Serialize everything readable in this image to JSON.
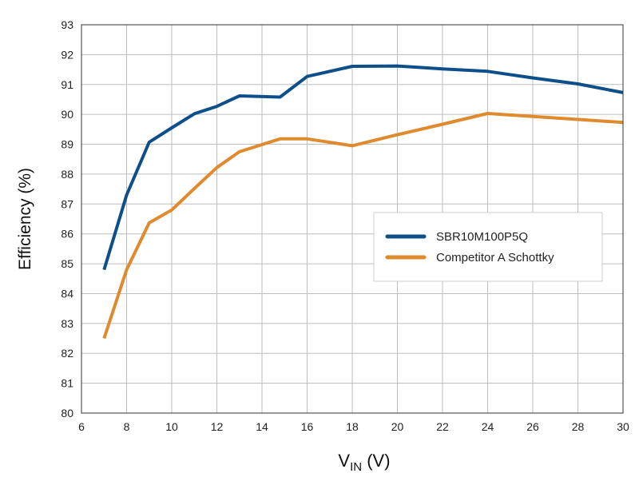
{
  "chart_data": {
    "type": "line",
    "title": "",
    "xlabel": {
      "main": "V",
      "sub": "IN",
      "unit": " (V)"
    },
    "ylabel": "Efficiency (%)",
    "xlim": [
      6,
      30
    ],
    "ylim": [
      80,
      93
    ],
    "xticks": [
      6,
      8,
      10,
      12,
      14,
      16,
      18,
      20,
      22,
      24,
      26,
      28,
      30
    ],
    "yticks": [
      80,
      81,
      82,
      83,
      84,
      85,
      86,
      87,
      88,
      89,
      90,
      91,
      92,
      93
    ],
    "grid": true,
    "legend_position": "center-right",
    "series": [
      {
        "name": "SBR10M100P5Q",
        "color": "#0d4f8b",
        "x": [
          7,
          8,
          9,
          10,
          11,
          12,
          13,
          14.8,
          16,
          18,
          20,
          22,
          24,
          26,
          28,
          30
        ],
        "y": [
          84.8,
          87.3,
          89.07,
          89.55,
          90.02,
          90.27,
          90.62,
          90.58,
          91.27,
          91.61,
          91.62,
          91.52,
          91.44,
          91.22,
          91.02,
          90.73
        ]
      },
      {
        "name": "Competitor A Schottky",
        "color": "#e08a2e",
        "x": [
          7,
          8,
          9,
          10,
          11,
          12,
          13,
          14.8,
          16,
          18,
          20,
          22,
          24,
          26,
          28,
          30
        ],
        "y": [
          82.5,
          84.8,
          86.37,
          86.8,
          87.52,
          88.22,
          88.75,
          89.18,
          89.18,
          88.95,
          89.32,
          89.67,
          90.03,
          89.93,
          89.83,
          89.73
        ]
      }
    ]
  }
}
